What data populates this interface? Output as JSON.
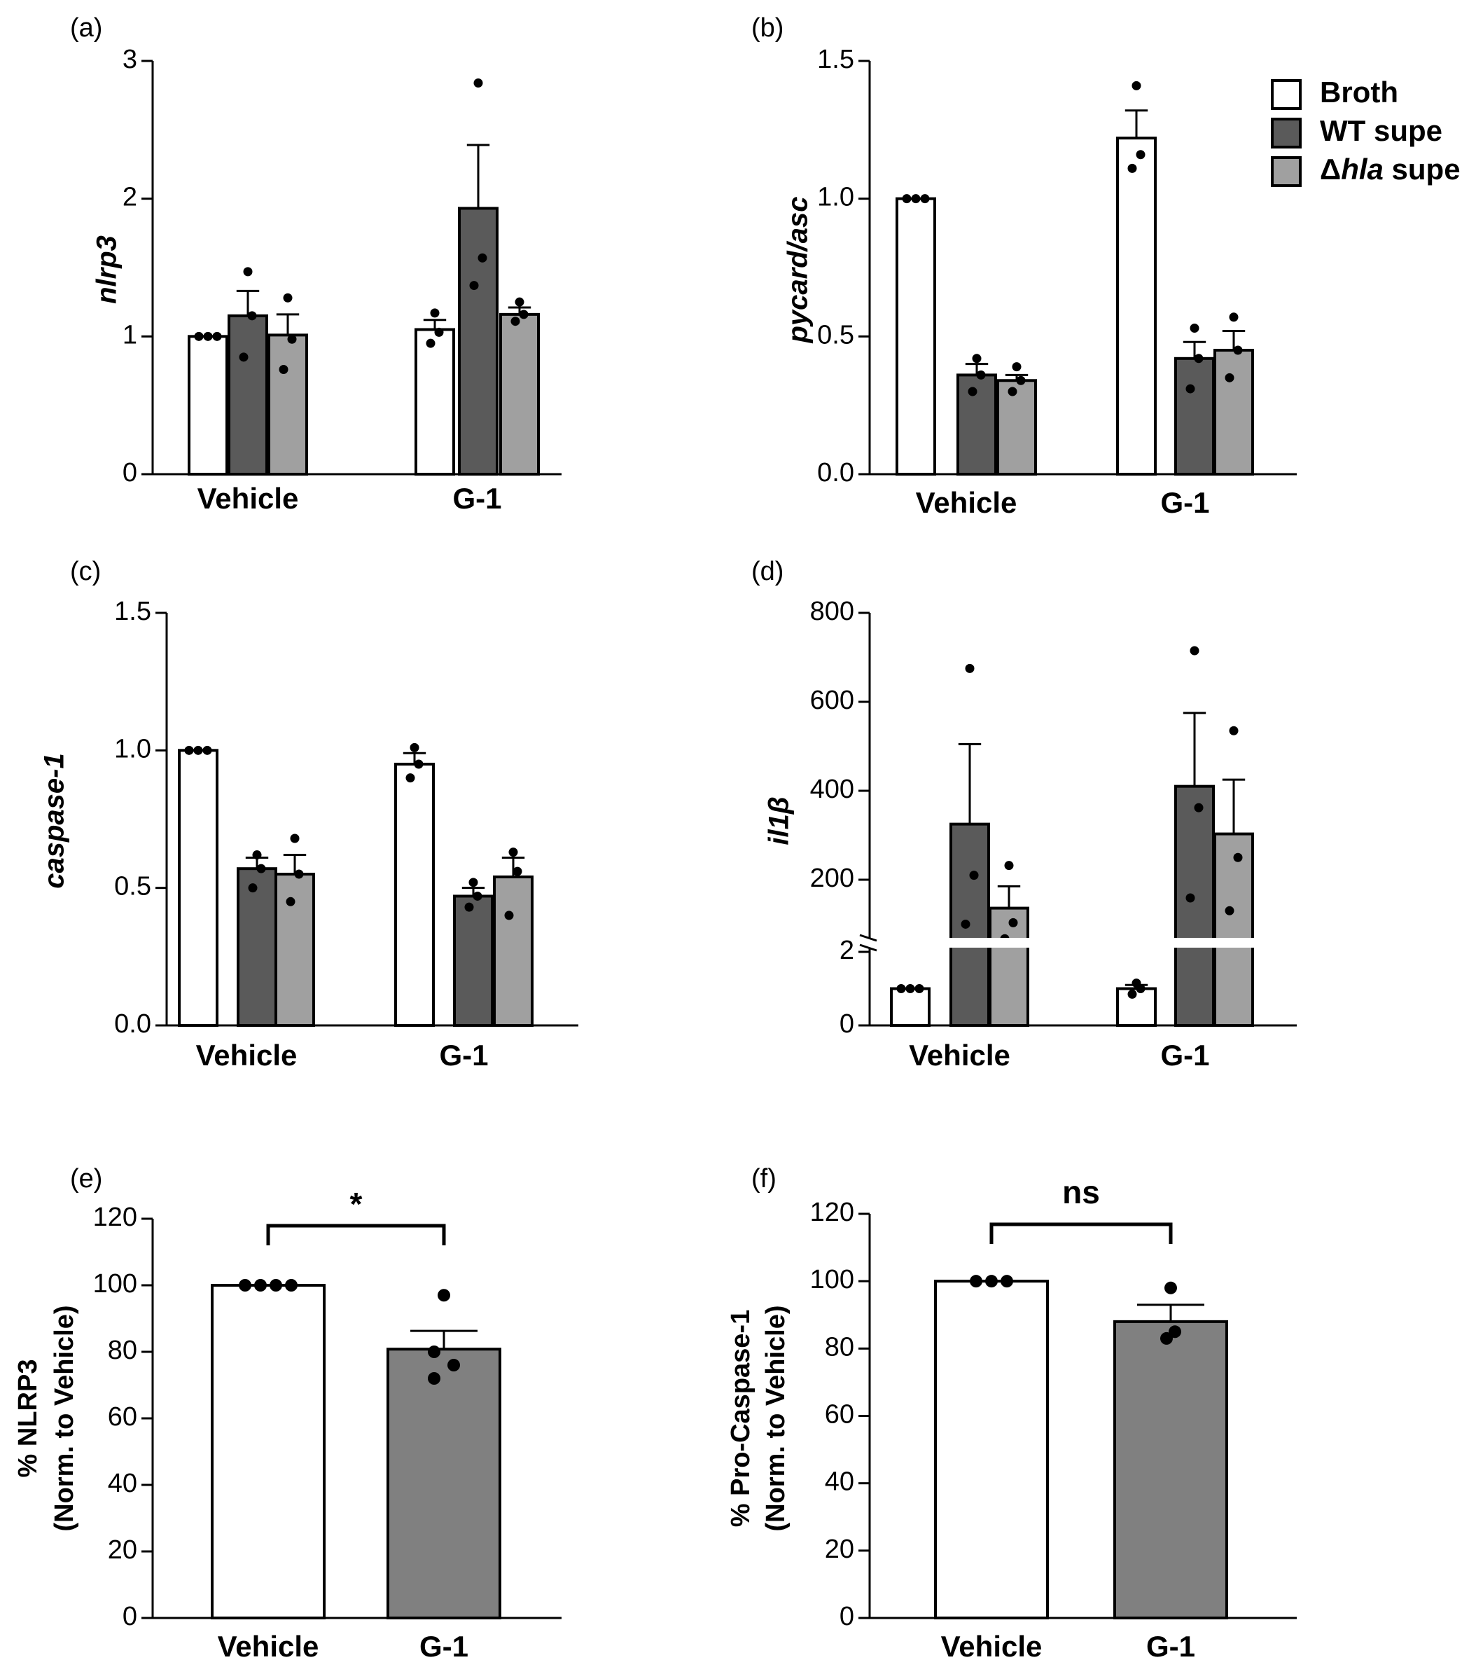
{
  "legend": {
    "entries": [
      {
        "name": "Broth",
        "color": "#ffffff"
      },
      {
        "name": "WT supe",
        "color": "#5a5a5a"
      },
      {
        "name": "Δhla supe",
        "color": "#a0a0a0",
        "prefix": "Δ",
        "italic": "hla",
        "suffix": " supe"
      }
    ]
  },
  "chart_data": [
    {
      "type": "bar",
      "panel_label": "(a)",
      "ylabel": "nlrp3",
      "ylim": [
        0,
        3
      ],
      "yticks": [
        "0",
        "1",
        "2",
        "3"
      ],
      "categories": [
        "Vehicle",
        "G-1"
      ],
      "series": [
        {
          "name": "Broth",
          "values": [
            1.0,
            1.05
          ],
          "sem": [
            0.0,
            0.07
          ],
          "points": [
            [
              1.0,
              1.0,
              1.0
            ],
            [
              0.95,
              1.03,
              1.17
            ]
          ]
        },
        {
          "name": "WT supe",
          "values": [
            1.15,
            1.93
          ],
          "sem": [
            0.18,
            0.46
          ],
          "points": [
            [
              0.85,
              1.15,
              1.47
            ],
            [
              1.37,
              1.57,
              2.84
            ]
          ]
        },
        {
          "name": "Δhla supe",
          "values": [
            1.01,
            1.16
          ],
          "sem": [
            0.15,
            0.05
          ],
          "points": [
            [
              0.76,
              0.98,
              1.28
            ],
            [
              1.11,
              1.16,
              1.25
            ]
          ]
        }
      ]
    },
    {
      "type": "bar",
      "panel_label": "(b)",
      "ylabel": "pycard/asc",
      "ylim": [
        0,
        1.5
      ],
      "yticks": [
        "0.0",
        "0.5",
        "1.0",
        "1.5"
      ],
      "categories": [
        "Vehicle",
        "G-1"
      ],
      "series": [
        {
          "name": "Broth",
          "values": [
            1.0,
            1.22
          ],
          "sem": [
            0.0,
            0.1
          ],
          "points": [
            [
              1.0,
              1.0,
              1.0
            ],
            [
              1.11,
              1.16,
              1.41
            ]
          ]
        },
        {
          "name": "WT supe",
          "values": [
            0.36,
            0.42
          ],
          "sem": [
            0.04,
            0.06
          ],
          "points": [
            [
              0.3,
              0.36,
              0.42
            ],
            [
              0.31,
              0.42,
              0.53
            ]
          ]
        },
        {
          "name": "Δhla supe",
          "values": [
            0.34,
            0.45
          ],
          "sem": [
            0.02,
            0.07
          ],
          "points": [
            [
              0.3,
              0.34,
              0.39
            ],
            [
              0.35,
              0.45,
              0.57
            ]
          ]
        }
      ]
    },
    {
      "type": "bar",
      "panel_label": "(c)",
      "ylabel": "caspase-1",
      "ylim": [
        0,
        1.5
      ],
      "yticks": [
        "0.0",
        "0.5",
        "1.0",
        "1.5"
      ],
      "categories": [
        "Vehicle",
        "G-1"
      ],
      "series": [
        {
          "name": "Broth",
          "values": [
            1.0,
            0.95
          ],
          "sem": [
            0.0,
            0.04
          ],
          "points": [
            [
              1.0,
              1.0,
              1.0
            ],
            [
              0.9,
              0.95,
              1.01
            ]
          ]
        },
        {
          "name": "WT supe",
          "values": [
            0.57,
            0.47
          ],
          "sem": [
            0.04,
            0.03
          ],
          "points": [
            [
              0.5,
              0.57,
              0.62
            ],
            [
              0.43,
              0.47,
              0.52
            ]
          ]
        },
        {
          "name": "Δhla supe",
          "values": [
            0.55,
            0.54
          ],
          "sem": [
            0.07,
            0.07
          ],
          "points": [
            [
              0.45,
              0.55,
              0.68
            ],
            [
              0.4,
              0.56,
              0.63
            ]
          ]
        }
      ]
    },
    {
      "type": "bar",
      "panel_label": "(d)",
      "ylabel": "il1β",
      "axis_break": true,
      "yticks": [
        "0",
        "2",
        "200",
        "400",
        "600",
        "800"
      ],
      "categories": [
        "Vehicle",
        "G-1"
      ],
      "series": [
        {
          "name": "Broth",
          "values": [
            1.0,
            1.0
          ],
          "sem": [
            0.0,
            0.1
          ],
          "points": [
            [
              1.0,
              1.0,
              1.0
            ],
            [
              0.85,
              1.0,
              1.15
            ]
          ]
        },
        {
          "name": "WT supe",
          "values": [
            325,
            410
          ],
          "sem": [
            180,
            165
          ],
          "points": [
            [
              78,
              210,
              675
            ],
            [
              150,
              362,
              715
            ]
          ]
        },
        {
          "name": "Δhla supe",
          "values": [
            122,
            303
          ],
          "sem": [
            60,
            122
          ],
          "points": [
            [
              38,
              82,
              232
            ],
            [
              115,
              250,
              535
            ]
          ]
        }
      ]
    },
    {
      "type": "bar",
      "panel_label": "(e)",
      "ylabel": "% NLRP3",
      "ylabel2": "(Norm. to Vehicle)",
      "ylim": [
        0,
        120
      ],
      "yticks": [
        "0",
        "20",
        "40",
        "60",
        "80",
        "100",
        "120"
      ],
      "categories": [
        "Vehicle",
        "G-1"
      ],
      "values": [
        100,
        80.8
      ],
      "sem": [
        0,
        5.5
      ],
      "points": [
        [
          100,
          100,
          100,
          100
        ],
        [
          72,
          76,
          80,
          97
        ]
      ],
      "colors": [
        "#ffffff",
        "#808080"
      ],
      "significance": "*"
    },
    {
      "type": "bar",
      "panel_label": "(f)",
      "ylabel": "% Pro-Caspase-1",
      "ylabel2": "(Norm. to Vehicle)",
      "ylim": [
        0,
        120
      ],
      "yticks": [
        "0",
        "20",
        "40",
        "60",
        "80",
        "100",
        "120"
      ],
      "categories": [
        "Vehicle",
        "G-1"
      ],
      "values": [
        100,
        88
      ],
      "sem": [
        0,
        5
      ],
      "points": [
        [
          100,
          100,
          100
        ],
        [
          83,
          85,
          98
        ]
      ],
      "colors": [
        "#ffffff",
        "#808080"
      ],
      "significance": "ns"
    }
  ]
}
